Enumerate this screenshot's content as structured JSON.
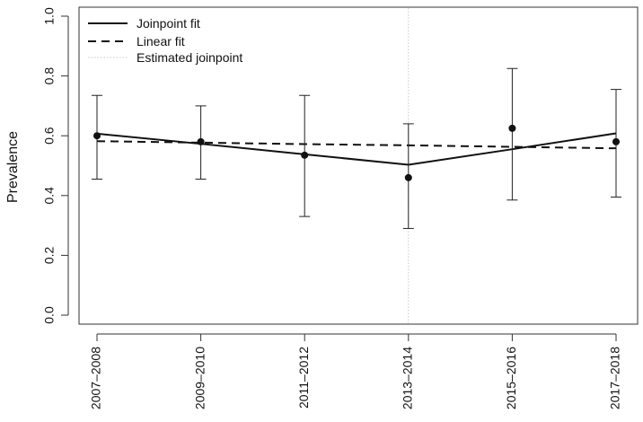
{
  "chart_data": {
    "type": "line",
    "ylabel": "Prevalence",
    "xlabel": "",
    "ylim": [
      0.0,
      1.0
    ],
    "yticks": [
      "0.0",
      "0.2",
      "0.4",
      "0.6",
      "0.8",
      "1.0"
    ],
    "categories": [
      "2007–2008",
      "2009–2010",
      "2011–2012",
      "2013–2014",
      "2015–2016",
      "2017–2018"
    ],
    "observed": {
      "estimates": [
        0.6,
        0.58,
        0.535,
        0.46,
        0.625,
        0.58
      ],
      "ci_lower": [
        0.455,
        0.455,
        0.33,
        0.29,
        0.385,
        0.395
      ],
      "ci_upper": [
        0.735,
        0.7,
        0.735,
        0.64,
        0.825,
        0.755
      ]
    },
    "joinpoint_fit": [
      0.607,
      0.573,
      0.538,
      0.503,
      0.555,
      0.608
    ],
    "linear_fit": [
      0.582,
      0.577,
      0.572,
      0.568,
      0.563,
      0.558
    ],
    "estimated_joinpoint_index": 3,
    "legend": {
      "position": "top-left",
      "entries": [
        {
          "label": "Joinpoint fit",
          "style": "solid"
        },
        {
          "label": "Linear fit",
          "style": "dashed"
        },
        {
          "label": "Estimated joinpoint",
          "style": "dotted"
        }
      ]
    },
    "colors": {
      "line": "#111111",
      "joinpoint": "#c8c8c8"
    }
  }
}
